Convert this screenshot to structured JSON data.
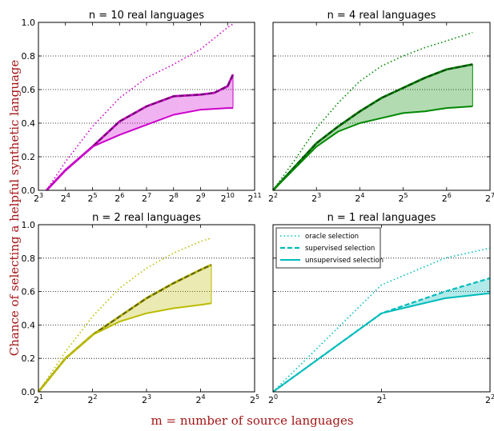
{
  "figure": {
    "ylabel": "Chance of selecting a helpful synthetic language",
    "xlabel": "m = number of source languages",
    "label_color": "#a31515",
    "y_ticks": [
      "0.0",
      "0.2",
      "0.4",
      "0.6",
      "0.8",
      "1.0"
    ]
  },
  "legend": {
    "oracle": "oracle selection",
    "supervised": "supervised selection",
    "unsupervised": "unsupervised selection"
  },
  "chart_data": [
    {
      "type": "line",
      "title": "n = 10 real languages",
      "color": "#cc00cc",
      "xscale": "log2",
      "xlim": [
        3,
        11
      ],
      "ylim": [
        0,
        1
      ],
      "grid": "horizontal dotted",
      "x_tick_exponents": [
        "3",
        "4",
        "5",
        "6",
        "7",
        "8",
        "9",
        "10",
        "11"
      ],
      "series": [
        {
          "style": "oracle",
          "x": [
            3.3,
            4,
            5,
            6,
            7,
            8,
            9,
            10,
            10.2
          ],
          "values": [
            0.0,
            0.17,
            0.38,
            0.55,
            0.67,
            0.75,
            0.84,
            0.97,
            0.99
          ]
        },
        {
          "style": "supervised",
          "x": [
            3.3,
            4,
            5,
            6,
            7,
            8,
            9,
            9.5,
            10,
            10.2
          ],
          "values": [
            0.0,
            0.12,
            0.26,
            0.41,
            0.5,
            0.56,
            0.57,
            0.58,
            0.62,
            0.69
          ]
        },
        {
          "style": "unsupervised",
          "x": [
            3.3,
            4,
            5,
            6,
            7,
            8,
            9,
            10,
            10.2
          ],
          "values": [
            0.0,
            0.12,
            0.26,
            0.33,
            0.39,
            0.45,
            0.48,
            0.49,
            0.49
          ]
        }
      ]
    },
    {
      "type": "line",
      "title": "n = 4 real languages",
      "color": "#008800",
      "xscale": "log2",
      "xlim": [
        2,
        7
      ],
      "ylim": [
        0,
        1
      ],
      "grid": "horizontal dotted",
      "x_tick_exponents": [
        "2",
        "3",
        "4",
        "5",
        "6",
        "7"
      ],
      "series": [
        {
          "style": "oracle",
          "x": [
            2,
            2.5,
            3,
            3.5,
            4,
            4.5,
            5,
            5.5,
            6,
            6.6
          ],
          "values": [
            0.0,
            0.18,
            0.37,
            0.52,
            0.65,
            0.74,
            0.8,
            0.85,
            0.89,
            0.94
          ]
        },
        {
          "style": "supervised",
          "x": [
            2,
            2.5,
            3,
            3.5,
            4,
            4.5,
            5,
            5.5,
            6,
            6.6
          ],
          "values": [
            0.0,
            0.14,
            0.28,
            0.38,
            0.47,
            0.55,
            0.61,
            0.67,
            0.72,
            0.75
          ]
        },
        {
          "style": "unsupervised",
          "x": [
            2,
            2.5,
            3,
            3.5,
            4,
            4.5,
            5,
            5.5,
            6,
            6.6
          ],
          "values": [
            0.0,
            0.13,
            0.26,
            0.35,
            0.4,
            0.43,
            0.46,
            0.47,
            0.49,
            0.5
          ]
        }
      ]
    },
    {
      "type": "line",
      "title": "n = 2 real languages",
      "color": "#bbbb00",
      "xscale": "log2",
      "xlim": [
        1,
        5
      ],
      "ylim": [
        0,
        1
      ],
      "grid": "horizontal dotted",
      "x_tick_exponents": [
        "1",
        "2",
        "3",
        "4",
        "5"
      ],
      "series": [
        {
          "style": "oracle",
          "x": [
            1,
            1.5,
            2,
            2.5,
            3,
            3.5,
            4,
            4.2
          ],
          "values": [
            0.0,
            0.24,
            0.45,
            0.62,
            0.74,
            0.83,
            0.9,
            0.92
          ]
        },
        {
          "style": "supervised",
          "x": [
            1,
            1.5,
            2,
            2.5,
            3,
            3.5,
            4,
            4.2
          ],
          "values": [
            0.0,
            0.2,
            0.34,
            0.45,
            0.56,
            0.65,
            0.73,
            0.76
          ]
        },
        {
          "style": "unsupervised",
          "x": [
            1,
            1.5,
            2,
            2.5,
            3,
            3.5,
            4,
            4.2
          ],
          "values": [
            0.0,
            0.2,
            0.34,
            0.42,
            0.47,
            0.5,
            0.52,
            0.53
          ]
        }
      ]
    },
    {
      "type": "line",
      "title": "n = 1 real languages",
      "color": "#00bbbb",
      "xscale": "log2",
      "xlim": [
        0,
        2
      ],
      "ylim": [
        0,
        1
      ],
      "grid": "horizontal dotted",
      "x_tick_exponents": [
        "0",
        "1",
        "2"
      ],
      "series": [
        {
          "style": "oracle",
          "x": [
            0,
            1,
            1.585,
            2
          ],
          "values": [
            0.0,
            0.64,
            0.8,
            0.86
          ]
        },
        {
          "style": "supervised",
          "x": [
            0,
            1,
            1.585,
            2
          ],
          "values": [
            0.0,
            0.47,
            0.6,
            0.68
          ]
        },
        {
          "style": "unsupervised",
          "x": [
            0,
            1,
            1.585,
            2
          ],
          "values": [
            0.0,
            0.47,
            0.56,
            0.59
          ]
        }
      ]
    }
  ]
}
